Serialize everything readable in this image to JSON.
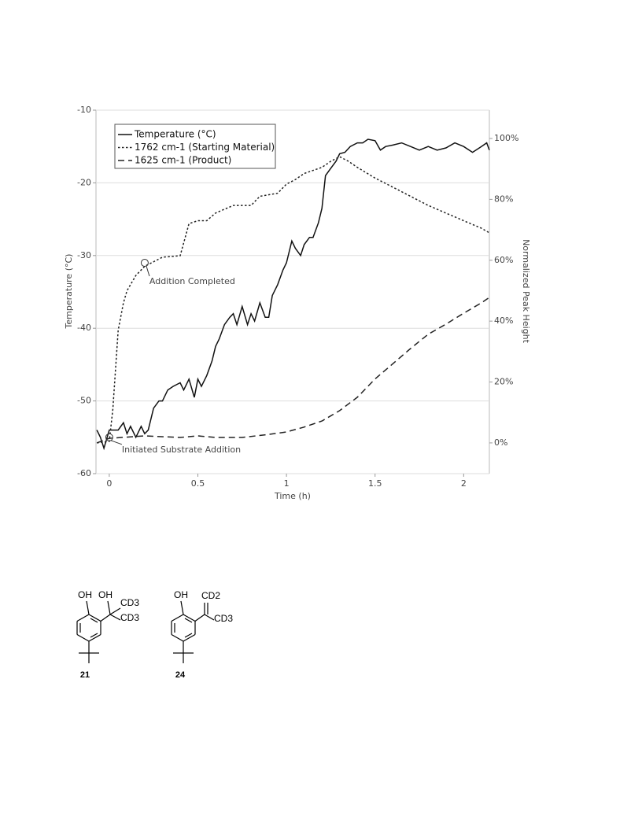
{
  "chart_data": {
    "type": "line",
    "xlabel": "Time (h)",
    "ylabel": "Temperature (°C)",
    "y2label": "Normalized Peak Height",
    "xlim": [
      -0.075,
      2.145
    ],
    "xticks": [
      0,
      0.5,
      1,
      1.5,
      2
    ],
    "ylim": [
      -60,
      -10
    ],
    "yticks": [
      -60,
      -50,
      -40,
      -30,
      -20,
      -10
    ],
    "y2lim": [
      -10.1,
      109.3
    ],
    "y2ticks": [
      {
        "value": 0,
        "label": "0%"
      },
      {
        "value": 20,
        "label": "20%"
      },
      {
        "value": 40,
        "label": "40%"
      },
      {
        "value": 60,
        "label": "60%"
      },
      {
        "value": 80,
        "label": "80%"
      },
      {
        "value": 100,
        "label": "100%"
      }
    ],
    "grid": true,
    "legend": "upper left",
    "series": [
      {
        "name": "Temperature (°C)",
        "color": "#111111",
        "style": "solid",
        "x": [
          -0.07,
          -0.05,
          -0.03,
          0,
          0.05,
          0.08,
          0.1,
          0.12,
          0.15,
          0.18,
          0.2,
          0.22,
          0.25,
          0.28,
          0.3,
          0.33,
          0.36,
          0.4,
          0.42,
          0.45,
          0.48,
          0.5,
          0.52,
          0.55,
          0.58,
          0.6,
          0.62,
          0.65,
          0.68,
          0.7,
          0.72,
          0.75,
          0.78,
          0.8,
          0.82,
          0.85,
          0.88,
          0.9,
          0.92,
          0.95,
          0.98,
          1.0,
          1.03,
          1.05,
          1.08,
          1.1,
          1.13,
          1.15,
          1.18,
          1.2,
          1.22,
          1.25,
          1.28,
          1.3,
          1.33,
          1.36,
          1.4,
          1.43,
          1.46,
          1.5,
          1.53,
          1.56,
          1.6,
          1.65,
          1.7,
          1.75,
          1.8,
          1.85,
          1.9,
          1.95,
          2.0,
          2.05,
          2.1,
          2.13,
          2.145
        ],
        "values": [
          -54,
          -55,
          -56.5,
          -54,
          -54,
          -53,
          -54.5,
          -53.5,
          -55,
          -53.5,
          -54.5,
          -54,
          -51,
          -50,
          -50,
          -48.5,
          -48,
          -47.5,
          -48.5,
          -47,
          -49.5,
          -47,
          -48,
          -46.5,
          -44.5,
          -42.5,
          -41.5,
          -39.5,
          -38.5,
          -38,
          -39.5,
          -37,
          -39.5,
          -38,
          -39,
          -36.5,
          -38.5,
          -38.5,
          -35.5,
          -34,
          -32,
          -31,
          -28,
          -29,
          -30,
          -28.5,
          -27.5,
          -27.5,
          -25.5,
          -23.5,
          -19,
          -18,
          -17,
          -16,
          -15.8,
          -15,
          -14.5,
          -14.5,
          -14,
          -14.2,
          -15.5,
          -15,
          -14.8,
          -14.5,
          -15,
          -15.5,
          -15,
          -15.5,
          -15.2,
          -14.5,
          -15,
          -15.8,
          -15,
          -14.5,
          -15.5
        ]
      },
      {
        "name": "1762 cm-1 (Starting Material)",
        "color": "#222222",
        "style": "dotted",
        "axis": "y2",
        "x": [
          -0.07,
          0,
          0.02,
          0.05,
          0.08,
          0.1,
          0.15,
          0.2,
          0.3,
          0.4,
          0.45,
          0.5,
          0.55,
          0.6,
          0.7,
          0.8,
          0.85,
          0.95,
          1.0,
          1.05,
          1.1,
          1.2,
          1.25,
          1.3,
          1.35,
          1.4,
          1.5,
          1.6,
          1.7,
          1.8,
          1.9,
          2.0,
          2.1,
          2.145
        ],
        "values": [
          0,
          0.5,
          11,
          37,
          46,
          50,
          55,
          58,
          61,
          61.5,
          72,
          73,
          73,
          75.5,
          78,
          78,
          81,
          82,
          85,
          86.5,
          88.5,
          90.5,
          92.5,
          94,
          92.5,
          90.5,
          87,
          84,
          81,
          78,
          75.5,
          73,
          70.5,
          69
        ]
      },
      {
        "name": "1625 cm-1 (Product)",
        "color": "#222222",
        "style": "dashed",
        "axis": "y2",
        "x": [
          -0.07,
          0,
          0.2,
          0.4,
          0.5,
          0.6,
          0.75,
          0.9,
          1.0,
          1.1,
          1.2,
          1.3,
          1.4,
          1.5,
          1.6,
          1.7,
          1.8,
          1.9,
          2.0,
          2.1,
          2.145
        ],
        "values": [
          0,
          1.5,
          2.3,
          1.8,
          2.3,
          1.8,
          1.8,
          2.8,
          3.6,
          5.2,
          7.2,
          10.6,
          15,
          21,
          26,
          31,
          35.7,
          39,
          42.6,
          46,
          47.8
        ]
      }
    ],
    "annotations": [
      {
        "text": "Addition Completed",
        "x": 0.2,
        "y": -31
      },
      {
        "text": "Initiated Substrate Addition",
        "x": 0,
        "y": -55
      }
    ]
  },
  "structures": [
    {
      "label": "21",
      "atoms": [
        "OH",
        "OH",
        "CD3",
        "CD3"
      ]
    },
    {
      "label": "24",
      "atoms": [
        "OH",
        "CD2",
        "CD3"
      ]
    }
  ]
}
